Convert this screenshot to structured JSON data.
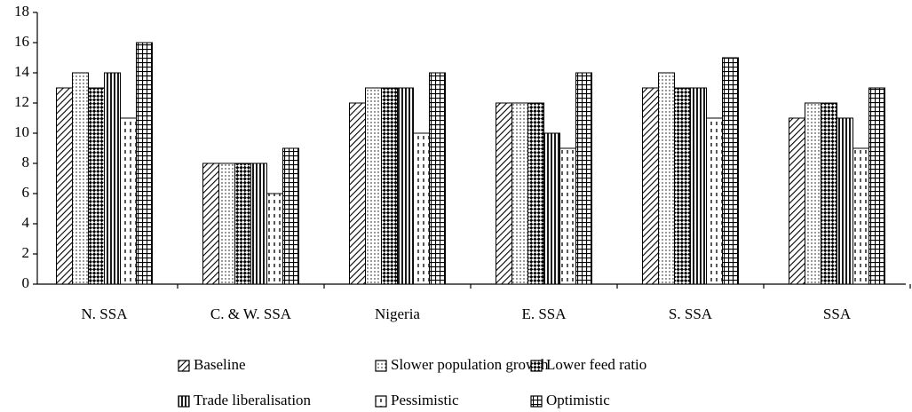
{
  "chart_data": {
    "type": "bar",
    "categories": [
      "N. SSA",
      "C. & W. SSA",
      "Nigeria",
      "E. SSA",
      "S. SSA",
      "SSA"
    ],
    "series": [
      {
        "name": "Baseline",
        "color": "#000000",
        "pattern": "diagonal",
        "values": [
          13,
          8,
          12,
          12,
          13,
          11
        ]
      },
      {
        "name": "Slower population growth",
        "color": "#000000",
        "pattern": "dots",
        "values": [
          14,
          8,
          13,
          12,
          14,
          12
        ]
      },
      {
        "name": "Lower feed ratio",
        "color": "#000000",
        "pattern": "crosshatch",
        "values": [
          13,
          8,
          13,
          12,
          13,
          12
        ]
      },
      {
        "name": "Trade liberalisation",
        "color": "#000000",
        "pattern": "vertical",
        "values": [
          14,
          8,
          13,
          10,
          13,
          11
        ]
      },
      {
        "name": "Pessimistic",
        "color": "#000000",
        "pattern": "dashes",
        "values": [
          11,
          6,
          10,
          9,
          11,
          9
        ]
      },
      {
        "name": "Optimistic",
        "color": "#000000",
        "pattern": "grid",
        "values": [
          16,
          9,
          14,
          14,
          15,
          13
        ]
      }
    ],
    "ylim": [
      0,
      18
    ],
    "yticks": [
      0,
      2,
      4,
      6,
      8,
      10,
      12,
      14,
      16,
      18
    ],
    "grid": false
  }
}
